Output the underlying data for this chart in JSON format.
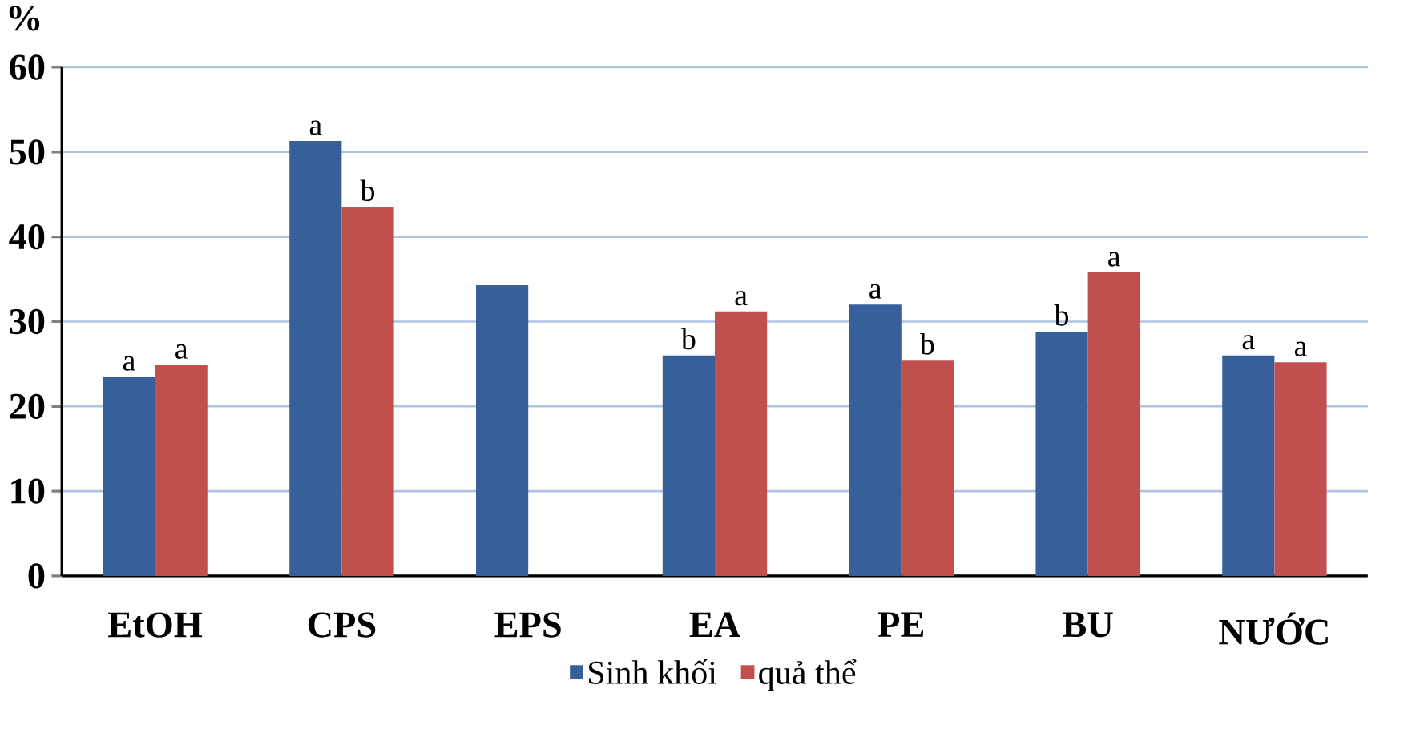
{
  "chart_data": {
    "type": "bar",
    "ylabel": "%",
    "categories": [
      "EtOH",
      "CPS",
      "EPS",
      "EA",
      "PE",
      "BU",
      "NƯỚC"
    ],
    "series": [
      {
        "name": "Sinh khối",
        "color": "#37609a",
        "values": [
          23.5,
          51.3,
          34.3,
          26.0,
          32.0,
          28.8,
          26.0
        ]
      },
      {
        "name": "quả thể",
        "color": "#c0504d",
        "values": [
          24.9,
          43.5,
          null,
          31.2,
          25.4,
          35.8,
          25.2
        ]
      }
    ],
    "ylim": [
      0,
      60
    ],
    "yticks": [
      0,
      10,
      20,
      30,
      40,
      50,
      60
    ],
    "grid": "y",
    "legend": "bottom",
    "annotations": [
      "a",
      "a",
      "a",
      "b",
      "b",
      "a",
      "a",
      "b",
      "b",
      "a",
      "a",
      "a"
    ]
  }
}
